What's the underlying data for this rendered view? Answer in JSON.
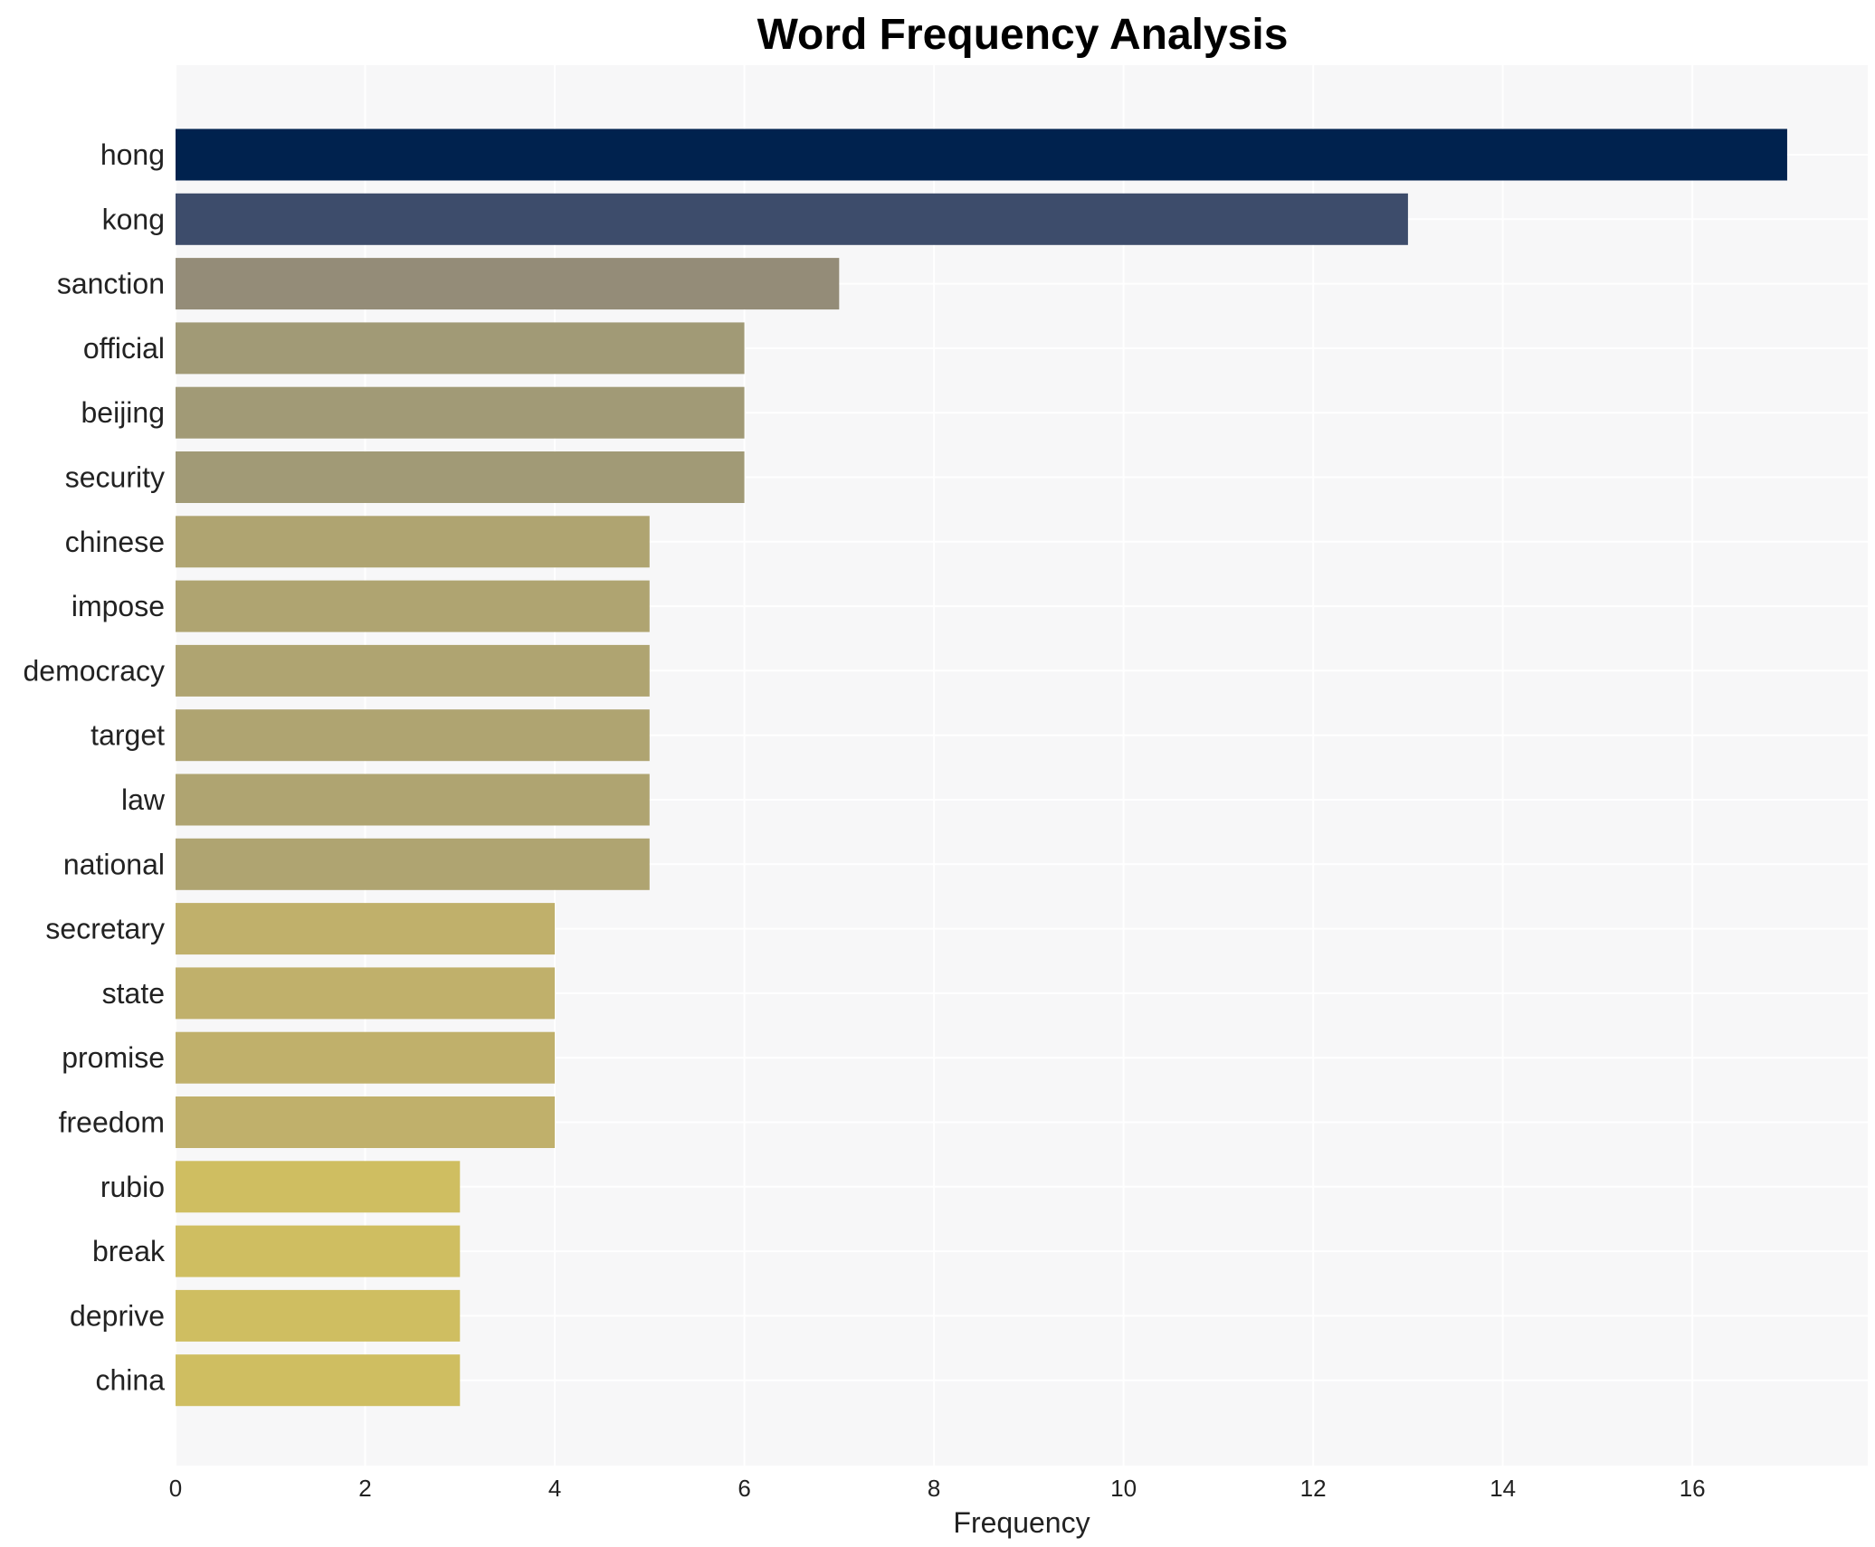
{
  "chart_data": {
    "type": "bar",
    "orientation": "horizontal",
    "title": "Word Frequency Analysis",
    "xlabel": "Frequency",
    "ylabel": "",
    "xlim": [
      0,
      17.85
    ],
    "xticks": [
      0,
      2,
      4,
      6,
      8,
      10,
      12,
      14,
      16
    ],
    "grid": true,
    "legend": "none",
    "colors": {
      "background": "#f7f7f8",
      "grid": "#ffffff"
    },
    "categories": [
      "hong",
      "kong",
      "sanction",
      "official",
      "beijing",
      "security",
      "chinese",
      "impose",
      "democracy",
      "target",
      "law",
      "national",
      "secretary",
      "state",
      "promise",
      "freedom",
      "rubio",
      "break",
      "deprive",
      "china"
    ],
    "values": [
      17,
      13,
      7,
      6,
      6,
      6,
      5,
      5,
      5,
      5,
      5,
      5,
      4,
      4,
      4,
      4,
      3,
      3,
      3,
      3
    ],
    "bar_colors": [
      "#00224e",
      "#3d4c6b",
      "#948c78",
      "#a19a76",
      "#a19a76",
      "#a19a76",
      "#afa471",
      "#afa471",
      "#afa471",
      "#afa471",
      "#afa471",
      "#afa471",
      "#c0b06b",
      "#c0b06b",
      "#c0b06b",
      "#c0b06b",
      "#cfbe61",
      "#cfbe61",
      "#cfbe61",
      "#cfbe61"
    ]
  }
}
